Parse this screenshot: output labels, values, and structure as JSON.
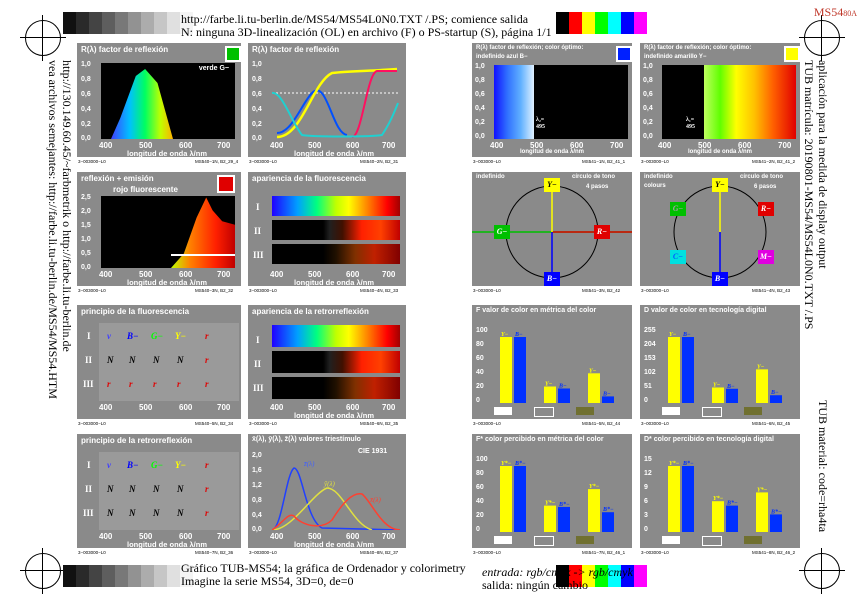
{
  "header": {
    "line1": "http://farbe.li.tu-berlin.de/MS54/MS54L0N0.TXT /.PS; comience salida",
    "line2": "N: ninguna 3D-linealización (OL) en archivo (F) o PS-startup (S), página 1/1",
    "corner": "MS54",
    "corner_small": "80A"
  },
  "footer": {
    "line1": "Gráfico TUB-MS54; la gráfica de Ordenador y colorimetry",
    "line2": "Imagine la serie MS54, 3D=0, de=0",
    "line3": "entrada: rgb/cmyk -> rgb/cmyk",
    "line4": "salida: ningún cambio"
  },
  "left_vertical": {
    "line1": "vea archivos semejantes: http://farbe.li.tu-berlin.de/MS54/MS54.HTM",
    "line2": "http://130.149.60.45/~farbmetrik o http://farbe.li.tu-berlin.de"
  },
  "right_vertical": {
    "line1": "TUB matrícula: 20190801-MS54/MS54L0N0.TXT /.PS",
    "line2": "aplicación para la medida de display output",
    "line3": "TUB material: code=rha4ta"
  },
  "gray_strip": [
    "#111111",
    "#2a2a2a",
    "#444444",
    "#5e5e5e",
    "#787878",
    "#929292",
    "#acacac",
    "#c6c6c6",
    "#e0e0e0",
    "#f4f4f4"
  ],
  "color_strip": [
    "#000000",
    "#ff0000",
    "#ffff00",
    "#00ff00",
    "#00ffff",
    "#0000ff",
    "#ff00ff",
    "#ffffff"
  ],
  "panels": {
    "p1": {
      "title": "R(λ) factor de reflexión",
      "label": "verde G−",
      "yticks": [
        "1,0",
        "0,8",
        "0,6",
        "0,4",
        "0,2",
        "0,0"
      ],
      "xticks": [
        "400",
        "500",
        "600",
        "700"
      ],
      "xlabel": "longitud de onda λ/nm",
      "code": "3−003000−L0",
      "code2": "MS540−1N, B2_29_4"
    },
    "p2": {
      "title": "R(λ) factor de reflexión",
      "yticks": [
        "1,0",
        "0,8",
        "0,6",
        "0,4",
        "0,2",
        "0,0"
      ],
      "xticks": [
        "400",
        "500",
        "600",
        "700"
      ],
      "xlabel": "longitud de onda λ/nm",
      "code": "3−003000−L0",
      "code2": "MS540−2N, B2_31"
    },
    "p3": {
      "title": "R(λ) factor de reflexión; color óptimo:",
      "title2": "indefinido azul B−",
      "yticks": [
        "1,0",
        "0,8",
        "0,6",
        "0,4",
        "0,2",
        "0,0"
      ],
      "xticks": [
        "400",
        "500",
        "600",
        "700"
      ],
      "xlabel": "longitud de onda λ/nm",
      "ann1": "λ₂=",
      "ann2": "495",
      "code": "3−003000−L0",
      "code2": "MS541−1N, B2_41_1"
    },
    "p4": {
      "title": "R(λ) factor de reflexión; color óptimo:",
      "title2": "indefinido amarillo Y−",
      "yticks": [
        "1,0",
        "0,8",
        "0,6",
        "0,4",
        "0,2",
        "0,0"
      ],
      "xticks": [
        "400",
        "500",
        "600",
        "700"
      ],
      "xlabel": "longitud de onda λ/nm",
      "ann1": "λ₁=",
      "ann2": "495",
      "code": "3−003000−L0",
      "code2": "MS541−2N, B2_41_2"
    },
    "p5": {
      "title": "reflexión + emisión",
      "title2": "rojo fluorescente",
      "yticks": [
        "2,5",
        "2,0",
        "1,5",
        "1,0",
        "0,5",
        "0,0"
      ],
      "xticks": [
        "400",
        "500",
        "600",
        "700"
      ],
      "xlabel": "longitud de onda λ/nm",
      "code": "3−003000−L0",
      "code2": "MS540−3N, B2_32"
    },
    "p6": {
      "title": "apariencia de la fluorescencia",
      "rows": [
        "I",
        "II",
        "III"
      ],
      "xticks": [
        "400",
        "500",
        "600",
        "700"
      ],
      "xlabel": "longitud de onda λ/nm",
      "code": "3−003000−L0",
      "code2": "MS540−4N, B2_33"
    },
    "p7": {
      "title": "indefinido",
      "title2": "círculo de tono",
      "title3": "4 pasos",
      "labels": [
        "Y−",
        "R−",
        "B−",
        "G−"
      ],
      "code": "3−003000−L0",
      "code2": "MS541−3N, B2_42"
    },
    "p8": {
      "title": "indefinido",
      "title1b": "colours",
      "title2": "círculo de tono",
      "title3": "6 pasos",
      "labels": [
        "Y−",
        "R−",
        "M−",
        "B−",
        "C−",
        "G−"
      ],
      "code": "3−003000−L0",
      "code2": "MS541−4N, B2_43"
    },
    "p9": {
      "title": "principio de la fluorescencia",
      "rows": [
        "I",
        "II",
        "III"
      ],
      "cols": [
        "v",
        "B−",
        "G−",
        "Y−",
        "r"
      ],
      "row2": [
        "N",
        "N",
        "N",
        "N",
        "r"
      ],
      "row3": [
        "r",
        "r",
        "r",
        "r",
        "r"
      ],
      "xticks": [
        "400",
        "500",
        "600",
        "700"
      ],
      "code": "3−003000−L0",
      "code2": "MS540−5N, B2_34"
    },
    "p10": {
      "title": "apariencia de la retrorreflexión",
      "rows": [
        "I",
        "II",
        "III"
      ],
      "xticks": [
        "400",
        "500",
        "600",
        "700"
      ],
      "xlabel": "longitud de onda λ/nm",
      "code": "3−003000−L0",
      "code2": "MS540−6N, B2_35"
    },
    "p11": {
      "title": "F  valor de color en métrica del color",
      "yticks": [
        "100",
        "80",
        "60",
        "40",
        "20",
        "0"
      ],
      "code": "3−003000−L0",
      "code2": "MS541−5N, B2_44"
    },
    "p12": {
      "title": "D  valor de color en tecnología digital",
      "yticks": [
        "255",
        "204",
        "153",
        "102",
        "51",
        "0"
      ],
      "code": "3−003000−L0",
      "code2": "MS541−6N, B2_45"
    },
    "p13": {
      "title": "principio de la retrorreflexión",
      "rows": [
        "I",
        "II",
        "III"
      ],
      "cols": [
        "v",
        "B−",
        "G−",
        "Y−",
        "r"
      ],
      "row2": [
        "N",
        "N",
        "N",
        "N",
        "r"
      ],
      "row3": [
        "N",
        "N",
        "N",
        "N",
        "r"
      ],
      "xticks": [
        "400",
        "500",
        "600",
        "700"
      ],
      "xlabel": "longitud de onda λ/nm",
      "code": "3−003000−L0",
      "code2": "MS540−7N, B2_36"
    },
    "p14": {
      "title": "x̄(λ), ȳ(λ), z̄(λ) valores triestímulo",
      "label": "CIE 1931",
      "yticks": [
        "2,0",
        "1,6",
        "1,2",
        "0,8",
        "0,4",
        "0,0"
      ],
      "xticks": [
        "400",
        "500",
        "600",
        "700"
      ],
      "xlabel": "longitud de onda λ/nm",
      "code": "3−003000−L0",
      "code2": "MS540−8N, B2_37"
    },
    "p15": {
      "title": "F*  color percibido en métrica del color",
      "yticks": [
        "100",
        "80",
        "60",
        "40",
        "20",
        "0"
      ],
      "code": "3−003000−L0",
      "code2": "MS541−7N, B2_46_1"
    },
    "p16": {
      "title": "D*  color percibido en tecnología digital",
      "yticks": [
        "15",
        "12",
        "9",
        "6",
        "3",
        "0"
      ],
      "code": "3−003000−L0",
      "code2": "MS541−8N, B2_46_2"
    }
  },
  "chart_data": [
    {
      "type": "line",
      "title": "R(λ) factor de reflexión",
      "series": [
        {
          "name": "verde G−",
          "x": [
            400,
            450,
            500,
            520,
            550,
            600,
            650,
            700
          ],
          "y": [
            0.05,
            0.2,
            0.75,
            0.8,
            0.6,
            0.1,
            0.05,
            0.05
          ]
        }
      ],
      "ylim": [
        0,
        1
      ]
    },
    {
      "type": "bar",
      "title": "F  valor de color en métrica del color",
      "categories": [
        "Y−",
        "B−",
        "Y−",
        "B−",
        "Y−",
        "B−"
      ],
      "values": [
        100,
        100,
        25,
        22,
        45,
        10
      ]
    },
    {
      "type": "bar",
      "title": "D  valor de color en tecnología digital",
      "categories": [
        "Y−",
        "B−",
        "Y−",
        "B−",
        "Y−",
        "B−"
      ],
      "values": [
        255,
        255,
        60,
        55,
        130,
        30
      ]
    },
    {
      "type": "bar",
      "title": "F*  color percibido en métrica del color",
      "categories": [
        "Y*−",
        "B*−",
        "Y*−",
        "B*−",
        "Y*−",
        "B*−"
      ],
      "values": [
        100,
        100,
        40,
        38,
        65,
        30
      ]
    },
    {
      "type": "bar",
      "title": "D*  color percibido en tecnología digital",
      "categories": [
        "Y*−",
        "B*−",
        "Y*−",
        "B*−",
        "Y*−",
        "B*−"
      ],
      "values": [
        15,
        15,
        7,
        6,
        9,
        4
      ]
    }
  ]
}
